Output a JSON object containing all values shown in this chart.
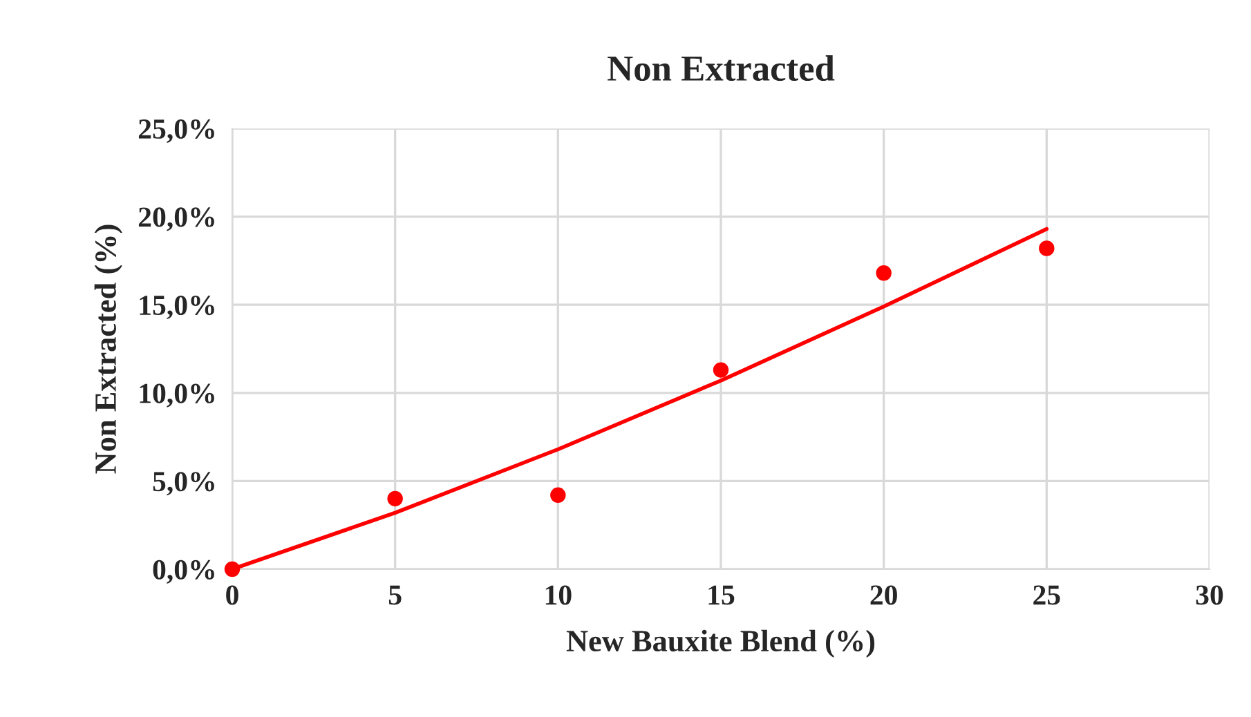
{
  "chart_data": {
    "type": "scatter",
    "title": "Non Extracted",
    "xlabel": "New Bauxite Blend (%)",
    "ylabel": "Non Extracted (%)",
    "series": [
      {
        "color": "#ff0000",
        "x": [
          0,
          5,
          10,
          15,
          20,
          25
        ],
        "values": [
          0.0,
          4.0,
          4.2,
          11.3,
          16.8,
          18.2
        ],
        "marker": "circle"
      },
      {
        "type": "line",
        "color": "#ff0000",
        "x": [
          0,
          5,
          10,
          15,
          20,
          25
        ],
        "values": [
          0.0,
          3.2,
          6.8,
          10.7,
          14.9,
          19.3
        ],
        "marker": "none",
        "line_style": "solid"
      }
    ],
    "xlim": [
      0,
      30
    ],
    "xticks": [
      0,
      5,
      10,
      15,
      20,
      25,
      30
    ],
    "ylim": [
      0,
      25
    ],
    "yticks": [
      {
        "value": 0,
        "label": "0,0%"
      },
      {
        "value": 5,
        "label": "5,0%"
      },
      {
        "value": 10,
        "label": "10,0%"
      },
      {
        "value": 15,
        "label": "15,0%"
      },
      {
        "value": 20,
        "label": "20,0%"
      },
      {
        "value": 25,
        "label": "25,0%"
      }
    ],
    "grid": true,
    "legend": false
  }
}
